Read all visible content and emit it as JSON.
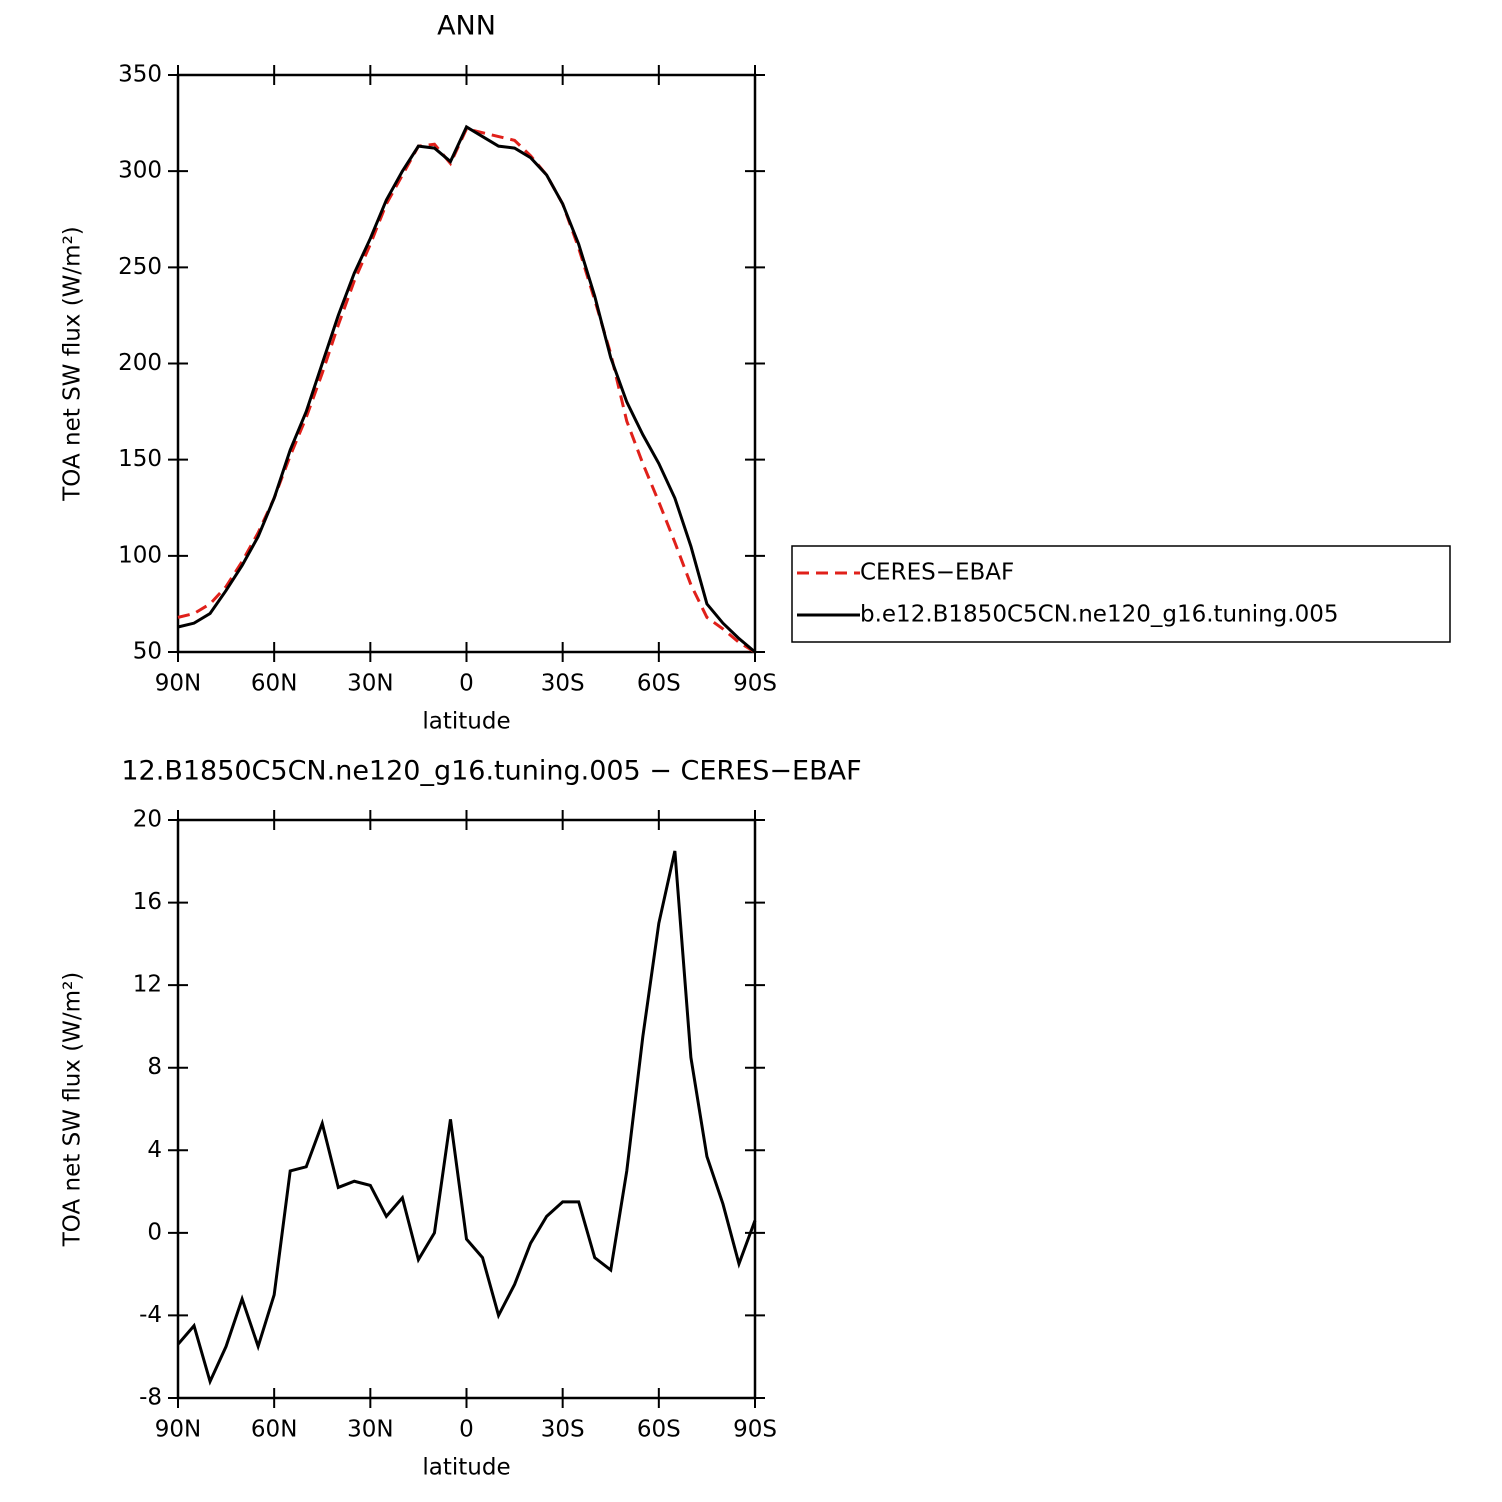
{
  "chart_data": [
    {
      "type": "line",
      "title": "ANN",
      "xlabel": "latitude",
      "ylabel": "TOA net SW flux (W/m²)",
      "x": [
        90,
        85,
        80,
        75,
        70,
        65,
        60,
        55,
        50,
        45,
        40,
        35,
        30,
        25,
        20,
        15,
        10,
        5,
        0,
        -5,
        -10,
        -15,
        -20,
        -25,
        -30,
        -35,
        -40,
        -45,
        -50,
        -55,
        -60,
        -65,
        -70,
        -75,
        -80,
        -85,
        -90
      ],
      "xlim": [
        90,
        -90
      ],
      "xticks": [
        {
          "value": 90,
          "label": "90N"
        },
        {
          "value": 60,
          "label": "60N"
        },
        {
          "value": 30,
          "label": "30N"
        },
        0,
        {
          "value": -30,
          "label": "30S"
        },
        {
          "value": -60,
          "label": "60S"
        },
        {
          "value": -90,
          "label": "90S"
        }
      ],
      "ylim": [
        50,
        350
      ],
      "yticks": [
        50,
        100,
        150,
        200,
        250,
        300,
        350
      ],
      "legend": "right",
      "series": [
        {
          "name": "CERES−EBAF",
          "color": "#e0201a",
          "dashed": true,
          "values": [
            68,
            70,
            75,
            84,
            97,
            112,
            130,
            152,
            172,
            195,
            220,
            243,
            262,
            283,
            298,
            313,
            314,
            304,
            322,
            320,
            318,
            316,
            308,
            298,
            283,
            260,
            233,
            205,
            170,
            148,
            128,
            107,
            85,
            68,
            62,
            55,
            50
          ]
        },
        {
          "name": "b.e12.B1850C5CN.ne120_g16.tuning.005",
          "color": "#000000",
          "dashed": false,
          "values": [
            63,
            65,
            70,
            82,
            95,
            110,
            130,
            155,
            175,
            200,
            225,
            247,
            265,
            285,
            300,
            313,
            312,
            305,
            323,
            318,
            313,
            312,
            307,
            298,
            283,
            262,
            235,
            203,
            180,
            163,
            148,
            130,
            105,
            75,
            65,
            57,
            50
          ]
        }
      ]
    },
    {
      "type": "line",
      "title": "12.B1850C5CN.ne120_g16.tuning.005 − CERES−EBAF",
      "xlabel": "latitude",
      "ylabel": "TOA net SW flux (W/m²)",
      "x": [
        90,
        85,
        80,
        75,
        70,
        65,
        60,
        55,
        50,
        45,
        40,
        35,
        30,
        25,
        20,
        15,
        10,
        5,
        0,
        -5,
        -10,
        -15,
        -20,
        -25,
        -30,
        -35,
        -40,
        -45,
        -50,
        -55,
        -60,
        -65,
        -70,
        -75,
        -80,
        -85,
        -90
      ],
      "xlim": [
        90,
        -90
      ],
      "xticks": [
        {
          "value": 90,
          "label": "90N"
        },
        {
          "value": 60,
          "label": "60N"
        },
        {
          "value": 30,
          "label": "30N"
        },
        0,
        {
          "value": -30,
          "label": "30S"
        },
        {
          "value": -60,
          "label": "60S"
        },
        {
          "value": -90,
          "label": "90S"
        }
      ],
      "ylim": [
        -8,
        20
      ],
      "yticks": [
        -8,
        -4,
        0,
        4,
        8,
        12,
        16,
        20
      ],
      "series": [
        {
          "color": "#000000",
          "dashed": false,
          "values": [
            -5.4,
            -4.5,
            -7.2,
            -5.5,
            -3.2,
            -5.5,
            -3,
            3,
            3.2,
            5.3,
            2.2,
            2.5,
            2.3,
            0.8,
            1.7,
            -1.3,
            0,
            5.5,
            -0.3,
            -1.2,
            -4,
            -2.5,
            -0.5,
            0.8,
            1.5,
            1.5,
            -1.2,
            -1.8,
            3,
            9.5,
            15,
            18.5,
            8.5,
            3.7,
            1.4,
            -1.5,
            0.6
          ]
        }
      ]
    }
  ]
}
